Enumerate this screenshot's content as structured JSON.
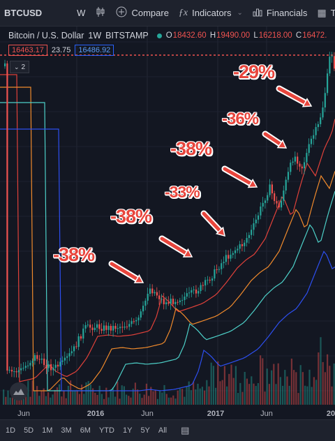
{
  "toolbar": {
    "symbol": "BTCUSD",
    "interval": "W",
    "compare_label": "Compare",
    "indicators_label": "Indicators",
    "financials_label": "Financials",
    "truncated_label": "Te"
  },
  "legend": {
    "title": "Bitcoin / U.S. Dollar",
    "interval": "1W",
    "exchange": "BITSTAMP",
    "open_prefix": "O",
    "open": "18432.60",
    "high_prefix": "H",
    "high": "19490.00",
    "low_prefix": "L",
    "low": "16218.00",
    "close_prefix": "C",
    "close": "16472.",
    "bid": "16463.17",
    "spread": "23.75",
    "ask": "16486.92",
    "collapse_count": "2"
  },
  "axis": {
    "labels": [
      "Jun",
      "2016",
      "Jun",
      "2017",
      "Jun",
      "20"
    ]
  },
  "annotations": [
    "-38%",
    "-38%",
    "-33%",
    "-38%",
    "-36%",
    "-29%"
  ],
  "timeframes": [
    "1D",
    "5D",
    "1M",
    "3M",
    "6M",
    "YTD",
    "1Y",
    "5Y",
    "All"
  ],
  "colors": {
    "background": "#131722",
    "up": "#26a69a",
    "down": "#ef5350",
    "annotation": "#e8453c"
  },
  "icons": [
    "candles-icon",
    "compare-plus-icon",
    "indicators-fx-icon",
    "financials-icon",
    "tradingview-logo-icon",
    "go-to-date-icon"
  ]
}
